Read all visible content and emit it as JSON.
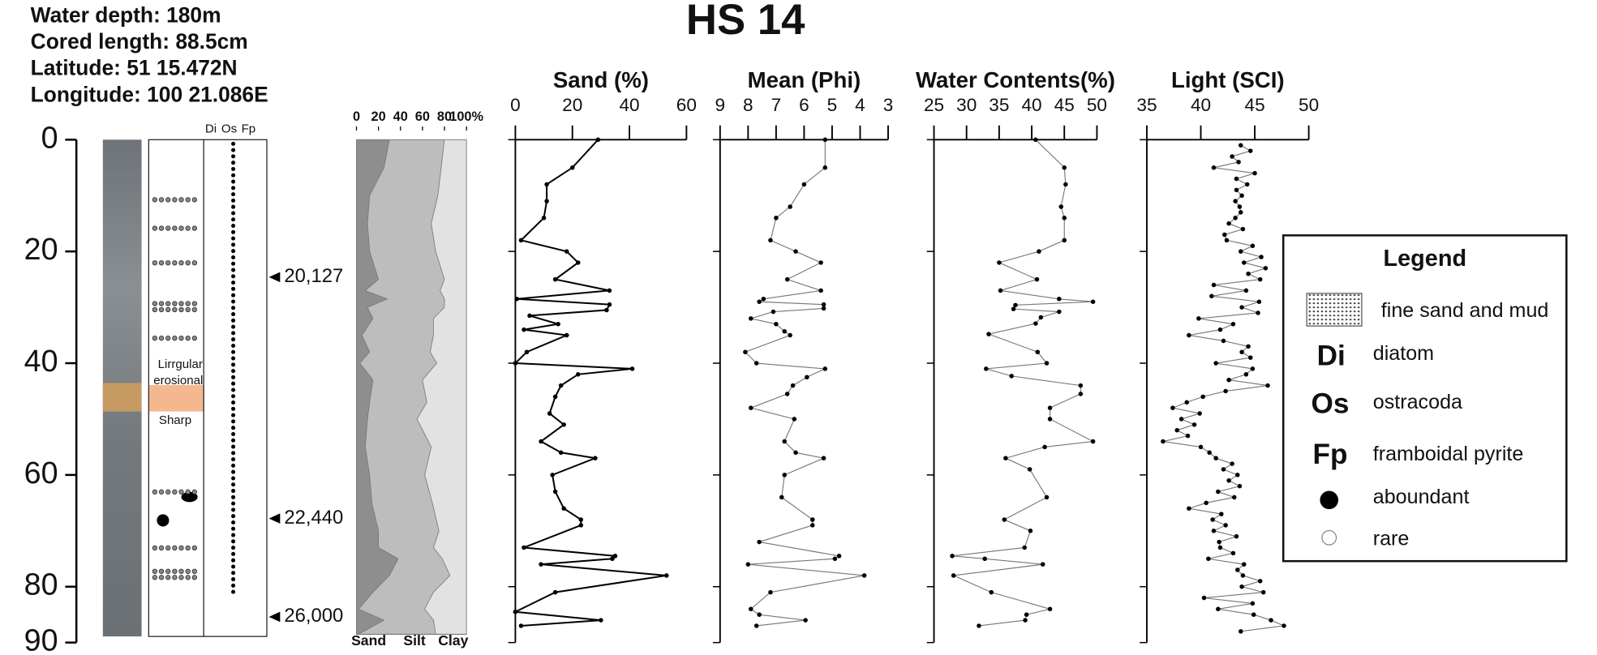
{
  "info": [
    "Water depth: 180m",
    "Cored length: 88.5cm",
    "Latitude: 51 15.472N",
    "Longitude: 100 21.086E"
  ],
  "title": "HS 14",
  "depth_axis": {
    "ylim": [
      0,
      90
    ],
    "yticks": [
      0,
      20,
      40,
      60,
      80,
      90
    ]
  },
  "core": {
    "columns": [
      "Di",
      "Os",
      "Fp"
    ],
    "erosion_label": [
      "Lirrgular",
      "erosional"
    ],
    "contact_label": "Sharp"
  },
  "ages": [
    {
      "depth": 24.6,
      "label": "20,127"
    },
    {
      "depth": 67.8,
      "label": "22,440"
    },
    {
      "depth": 85.4,
      "label": "26,000"
    }
  ],
  "chart_data": [
    {
      "type": "stacked-area",
      "xlim": [
        0,
        100
      ],
      "xticks": [
        0,
        20,
        40,
        60,
        80,
        {
          "value": 100,
          "label": "100%"
        }
      ],
      "y": [
        0,
        5,
        10,
        15,
        20,
        25,
        27,
        28.5,
        30,
        32,
        35,
        38,
        40,
        43,
        47,
        50,
        55,
        60,
        65,
        70,
        73,
        75,
        78,
        81,
        84,
        86,
        88.5
      ],
      "series": [
        {
          "name": "Sand",
          "color": "#8e8e8e",
          "values": [
            30,
            25,
            12,
            10,
            12,
            20,
            8,
            28,
            10,
            15,
            5,
            12,
            3,
            15,
            12,
            10,
            8,
            12,
            14,
            20,
            20,
            38,
            30,
            15,
            2,
            25,
            2
          ]
        },
        {
          "name": "Silt",
          "color": "#bdbdbd",
          "values": [
            50,
            52,
            62,
            58,
            60,
            60,
            68,
            52,
            70,
            55,
            65,
            55,
            70,
            45,
            52,
            45,
            60,
            50,
            55,
            55,
            50,
            40,
            55,
            55,
            60,
            45,
            70
          ]
        },
        {
          "name": "Clay",
          "color": "#e2e2e2",
          "values": [
            20,
            23,
            26,
            32,
            28,
            20,
            24,
            20,
            20,
            30,
            30,
            33,
            27,
            40,
            36,
            45,
            32,
            38,
            31,
            25,
            30,
            22,
            15,
            30,
            38,
            30,
            28
          ]
        }
      ]
    },
    {
      "type": "line",
      "title": "Sand (%)",
      "xlim": [
        0,
        60
      ],
      "xticks": [
        0,
        20,
        40,
        60
      ],
      "color": "#000000",
      "y": [
        0,
        5,
        8,
        11,
        14,
        18,
        20,
        22,
        25,
        27,
        28.5,
        29.5,
        30.5,
        31.5,
        33,
        34,
        35,
        38,
        40,
        41,
        42,
        44,
        46,
        49,
        51,
        54,
        56,
        57,
        60,
        63,
        66,
        68,
        69,
        73,
        74.5,
        75,
        76,
        78,
        81,
        84.5,
        86,
        87
      ],
      "values": [
        29,
        20,
        11,
        11,
        10,
        2,
        18,
        22,
        14,
        33,
        0.5,
        33,
        32,
        5,
        15,
        3,
        18,
        4,
        0,
        41,
        22,
        16,
        14,
        12,
        17,
        9,
        16,
        28,
        13,
        14,
        17,
        23,
        23,
        3,
        35,
        34,
        9,
        53,
        14,
        0,
        30,
        2
      ]
    },
    {
      "type": "line",
      "title": "Mean (Phi)",
      "xlim": [
        9,
        3
      ],
      "xticks": [
        9,
        8,
        7,
        6,
        5,
        4,
        3
      ],
      "color": "#777777",
      "y": [
        0,
        5,
        8,
        12,
        14,
        18,
        20,
        22,
        25,
        27,
        28.5,
        29,
        29.5,
        30.2,
        30.8,
        32,
        33,
        34.3,
        35,
        38,
        40,
        41,
        42.5,
        44,
        45.5,
        48,
        50,
        54,
        56,
        57,
        60,
        64,
        68,
        69,
        72,
        74.5,
        75,
        76,
        78,
        81,
        84,
        85,
        86,
        87
      ],
      "values": [
        5.25,
        5.25,
        6.0,
        6.5,
        7.0,
        7.2,
        6.3,
        5.4,
        6.6,
        5.4,
        7.45,
        7.6,
        5.3,
        5.3,
        7.1,
        7.9,
        7.0,
        6.7,
        6.5,
        8.1,
        7.7,
        5.25,
        5.9,
        6.4,
        6.6,
        7.9,
        6.35,
        6.7,
        6.3,
        5.3,
        6.7,
        6.8,
        5.7,
        5.7,
        7.6,
        4.75,
        4.9,
        8.0,
        3.85,
        7.2,
        7.9,
        7.6,
        5.95,
        7.7
      ]
    },
    {
      "type": "line",
      "title": "Water Contents(%)",
      "xlim": [
        25,
        50
      ],
      "xticks": [
        25,
        30,
        35,
        40,
        45,
        50
      ],
      "color": "#777777",
      "y": [
        0,
        5,
        8,
        12,
        14,
        18,
        20,
        22,
        25,
        27,
        28.5,
        29,
        29.6,
        30.3,
        30.8,
        31.8,
        32.9,
        34.8,
        38,
        40,
        41,
        42.3,
        44,
        45.5,
        48,
        50,
        54,
        55,
        57,
        59,
        64,
        68,
        70,
        73,
        74.5,
        75,
        76,
        78,
        81,
        84,
        85,
        86,
        87
      ],
      "values": [
        40.6,
        45,
        45.2,
        44.5,
        45,
        45,
        41.1,
        35,
        40.8,
        35.2,
        44.2,
        49.4,
        37.5,
        37.2,
        44.2,
        41.4,
        40.6,
        33.4,
        40.9,
        42.3,
        33,
        36.9,
        47.5,
        47.5,
        42.8,
        42.8,
        49.4,
        42,
        36,
        39.7,
        42.3,
        35.8,
        39.8,
        38.9,
        27.8,
        32.8,
        41.7,
        28,
        33.8,
        42.8,
        39.2,
        39,
        31.9
      ]
    },
    {
      "type": "line",
      "title": "Light (SCI)",
      "xlim": [
        35,
        50
      ],
      "xticks": [
        35,
        40,
        45,
        50
      ],
      "color": "#777777",
      "y": [
        1,
        2,
        3,
        4,
        5,
        6,
        7,
        8,
        9,
        10,
        11,
        12,
        13,
        14,
        15,
        16,
        17,
        18,
        19,
        20,
        21,
        22,
        23,
        24,
        25,
        26,
        27,
        28,
        29,
        30,
        31,
        32,
        33,
        34,
        35,
        36,
        37,
        38,
        39,
        40,
        41,
        42,
        43,
        44,
        45,
        46,
        47,
        48,
        49,
        50,
        51,
        52,
        53,
        54,
        55,
        56,
        57,
        58,
        59,
        60,
        61,
        62,
        63,
        64,
        65,
        66,
        67,
        68,
        69,
        70,
        71,
        72,
        73,
        74,
        75,
        76,
        77,
        78,
        79,
        80,
        81,
        82,
        83,
        84,
        85,
        86,
        87,
        88
      ],
      "values": [
        43.7,
        44.6,
        42.9,
        43.5,
        41.2,
        45,
        43.3,
        44.3,
        43.3,
        43.8,
        43.2,
        43.6,
        43.7,
        43.2,
        42.6,
        43.9,
        42.2,
        42.4,
        44.8,
        43.7,
        45.6,
        44,
        46,
        44.4,
        45.5,
        41.2,
        44.2,
        41,
        45.4,
        43.8,
        45.3,
        39.8,
        43,
        41.8,
        38.9,
        42.1,
        44.4,
        43.8,
        44.6,
        41.4,
        44.8,
        44.2,
        42.6,
        46.2,
        42.3,
        40.2,
        38.7,
        37.4,
        39.9,
        38.2,
        39.4,
        37.8,
        38.8,
        36.5,
        40,
        40.8,
        41.4,
        42.9,
        42.1,
        43.4,
        42.6,
        43.6,
        41.6,
        43.1,
        40.5,
        38.9,
        41.9,
        41.1,
        42.3,
        41.2,
        43.3,
        41.7,
        41.8,
        43,
        40.7,
        44,
        43.4,
        43.9,
        45.5,
        43.8,
        45.8,
        40.3,
        44.8,
        41.6,
        44.9,
        46.5,
        47.7,
        43.7
      ]
    }
  ],
  "legend": {
    "title": "Legend",
    "items": [
      {
        "label": "fine sand and mud"
      },
      {
        "symbol": "Di",
        "label": "diatom"
      },
      {
        "symbol": "Os",
        "label": "ostracoda"
      },
      {
        "symbol": "Fp",
        "label": "framboidal pyrite"
      },
      {
        "label": "aboundant"
      },
      {
        "label": "rare"
      }
    ]
  }
}
